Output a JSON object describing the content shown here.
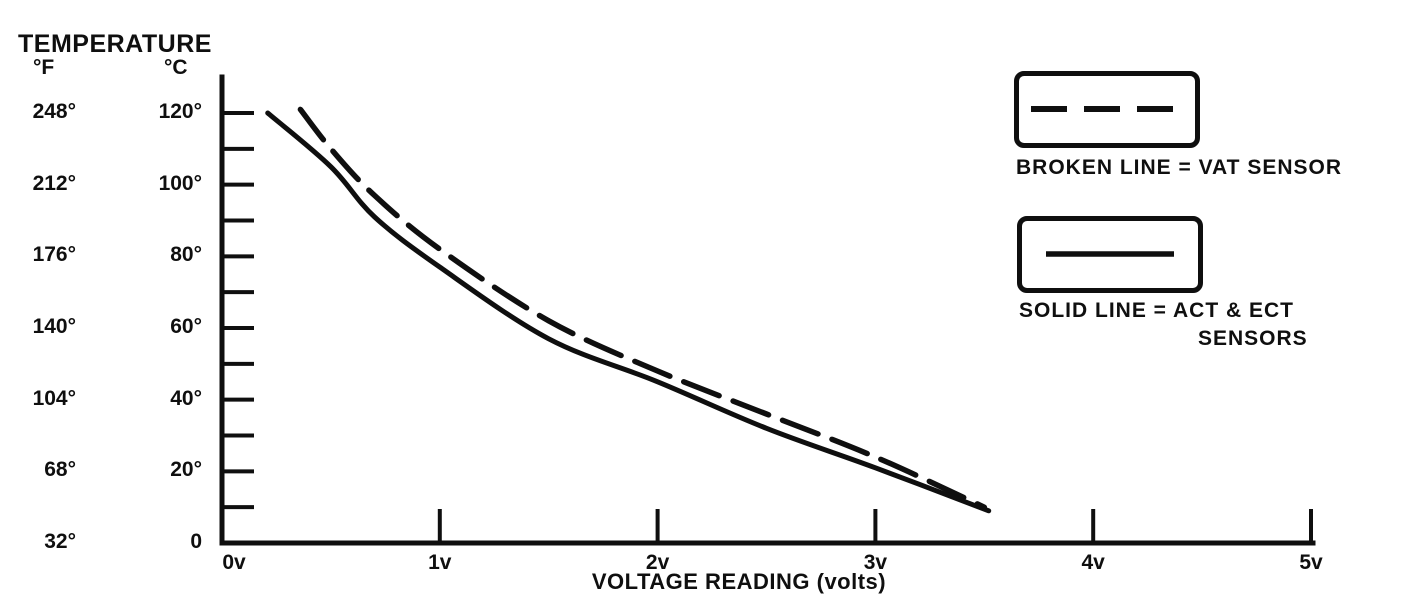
{
  "title": "TEMPERATURE",
  "y_axis": {
    "f_unit": "°F",
    "c_unit": "°C",
    "rows": [
      {
        "f": "248°",
        "c_label": "120°",
        "c": 120
      },
      {
        "f": "212°",
        "c_label": "100°",
        "c": 100
      },
      {
        "f": "176°",
        "c_label": "80°",
        "c": 80
      },
      {
        "f": "140°",
        "c_label": "60°",
        "c": 60
      },
      {
        "f": "104°",
        "c_label": "40°",
        "c": 40
      },
      {
        "f": "68°",
        "c_label": "20°",
        "c": 20
      },
      {
        "f": "32°",
        "c_label": "0",
        "c": 0
      }
    ],
    "tick_min_c": 10,
    "tick_max_c": 120,
    "tick_step_c": 10
  },
  "x_axis": {
    "label": "VOLTAGE READING (volts)",
    "ticks": [
      {
        "label": "0v",
        "v": 0,
        "dx": 12,
        "mark": false
      },
      {
        "label": "1v",
        "v": 1
      },
      {
        "label": "2v",
        "v": 2
      },
      {
        "label": "3v",
        "v": 3
      },
      {
        "label": "4v",
        "v": 4
      },
      {
        "label": "5v",
        "v": 5
      }
    ]
  },
  "legend": [
    {
      "swatch": "dashed",
      "label": "BROKEN LINE = VAT SENSOR"
    },
    {
      "swatch": "solid",
      "label": "SOLID LINE = ACT & ECT",
      "label_line2": "SENSORS"
    }
  ],
  "chart_data": {
    "type": "line",
    "title": "TEMPERATURE",
    "xlabel": "VOLTAGE READING (volts)",
    "x_unit": "volts",
    "xlim": [
      0,
      5
    ],
    "ylim_celsius": [
      0,
      120
    ],
    "y_scales": {
      "fahrenheit_labels": [
        248,
        212,
        176,
        140,
        104,
        68,
        32
      ],
      "celsius_labels": [
        120,
        100,
        80,
        60,
        40,
        20,
        0
      ]
    },
    "grid": false,
    "legend_position": "top-right",
    "series": [
      {
        "name": "VAT SENSOR",
        "line_style": "dashed",
        "points_volts_celsius": [
          [
            0.36,
            121
          ],
          [
            0.5,
            110
          ],
          [
            0.7,
            97
          ],
          [
            1.0,
            82
          ],
          [
            1.5,
            62
          ],
          [
            2.0,
            48
          ],
          [
            2.5,
            36
          ],
          [
            3.0,
            24
          ],
          [
            3.5,
            10
          ]
        ]
      },
      {
        "name": "ACT & ECT SENSORS",
        "line_style": "solid",
        "points_volts_celsius": [
          [
            0.21,
            120
          ],
          [
            0.5,
            105
          ],
          [
            0.7,
            91
          ],
          [
            1.0,
            77
          ],
          [
            1.5,
            57
          ],
          [
            2.0,
            45
          ],
          [
            2.5,
            32
          ],
          [
            3.0,
            21
          ],
          [
            3.52,
            9
          ]
        ]
      }
    ]
  },
  "colors": {
    "ink": "#0f0f0f",
    "background": "#ffffff"
  }
}
